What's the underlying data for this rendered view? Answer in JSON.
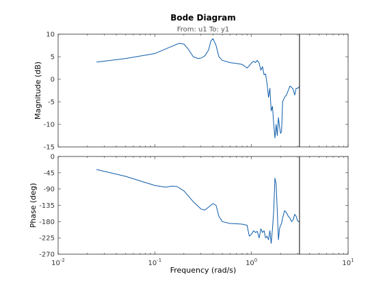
{
  "chart_data": {
    "type": "line",
    "title": "Bode Diagram",
    "subtitle": "From: u1  To: y1",
    "xlabel": "Frequency  (rad/s)",
    "xscale": "log",
    "xlim": [
      0.01,
      10
    ],
    "x_tick_labels": [
      {
        "base": "10",
        "exp": "-2"
      },
      {
        "base": "10",
        "exp": "-1"
      },
      {
        "base": "10",
        "exp": "0"
      },
      {
        "base": "10",
        "exp": "1"
      }
    ],
    "grid": false,
    "color": "#0b5aa8",
    "marker_line_x": 3.14,
    "panels": [
      {
        "name": "magnitude",
        "ylabel": "Magnitude (dB)",
        "ylim": [
          -15,
          10
        ],
        "yticks": [
          "10",
          "5",
          "0",
          "-5",
          "-10",
          "-15"
        ],
        "x": [
          0.025,
          0.05,
          0.1,
          0.15,
          0.18,
          0.2,
          0.22,
          0.25,
          0.28,
          0.3,
          0.33,
          0.36,
          0.38,
          0.4,
          0.43,
          0.46,
          0.5,
          0.6,
          0.7,
          0.8,
          0.9,
          0.95,
          1.0,
          1.05,
          1.1,
          1.15,
          1.2,
          1.25,
          1.3,
          1.35,
          1.4,
          1.45,
          1.5,
          1.55,
          1.6,
          1.65,
          1.7,
          1.75,
          1.8,
          1.85,
          1.9,
          1.95,
          2.0,
          2.05,
          2.1,
          2.2,
          2.3,
          2.4,
          2.5,
          2.6,
          2.7,
          2.8,
          2.9,
          3.0,
          3.14
        ],
        "y": [
          3.8,
          4.6,
          5.7,
          7.3,
          8.0,
          7.8,
          6.8,
          5.0,
          4.6,
          4.7,
          5.2,
          6.5,
          8.5,
          9.0,
          7.5,
          5.0,
          4.2,
          3.7,
          3.5,
          3.3,
          2.5,
          3.0,
          3.6,
          4.0,
          3.7,
          4.2,
          3.6,
          2.0,
          2.8,
          1.0,
          1.2,
          -1.0,
          -4.0,
          -2.0,
          -7.0,
          -6.0,
          -10.0,
          -13.0,
          -10.0,
          -12.5,
          -8.5,
          -10.5,
          -12.0,
          -11.5,
          -5.0,
          -4.0,
          -3.5,
          -2.5,
          -1.5,
          -1.8,
          -2.2,
          -3.5,
          -2.0,
          -2.0,
          -1.6
        ]
      },
      {
        "name": "phase",
        "ylabel": "Phase (deg)",
        "ylim": [
          -270,
          0
        ],
        "yticks": [
          "0",
          "-45",
          "-90",
          "-135",
          "-180",
          "-225",
          "-270"
        ],
        "x": [
          0.025,
          0.05,
          0.08,
          0.1,
          0.13,
          0.15,
          0.17,
          0.2,
          0.25,
          0.3,
          0.33,
          0.36,
          0.4,
          0.43,
          0.46,
          0.5,
          0.6,
          0.7,
          0.8,
          0.9,
          0.95,
          1.0,
          1.05,
          1.1,
          1.15,
          1.2,
          1.25,
          1.3,
          1.35,
          1.4,
          1.45,
          1.5,
          1.55,
          1.6,
          1.65,
          1.7,
          1.75,
          1.8,
          1.85,
          1.9,
          1.95,
          2.0,
          2.05,
          2.1,
          2.2,
          2.3,
          2.4,
          2.5,
          2.6,
          2.7,
          2.8,
          2.9,
          3.0,
          3.14
        ],
        "y": [
          -36,
          -55,
          -72,
          -80,
          -85,
          -82,
          -83,
          -95,
          -125,
          -145,
          -148,
          -140,
          -130,
          -135,
          -165,
          -180,
          -185,
          -186,
          -187,
          -190,
          -220,
          -215,
          -205,
          -210,
          -207,
          -225,
          -200,
          -210,
          -205,
          -225,
          -220,
          -230,
          -205,
          -240,
          -200,
          -150,
          -60,
          -75,
          -150,
          -230,
          -200,
          -190,
          -185,
          -170,
          -150,
          -155,
          -165,
          -170,
          -180,
          -175,
          -160,
          -165,
          -178,
          -181
        ]
      }
    ]
  }
}
